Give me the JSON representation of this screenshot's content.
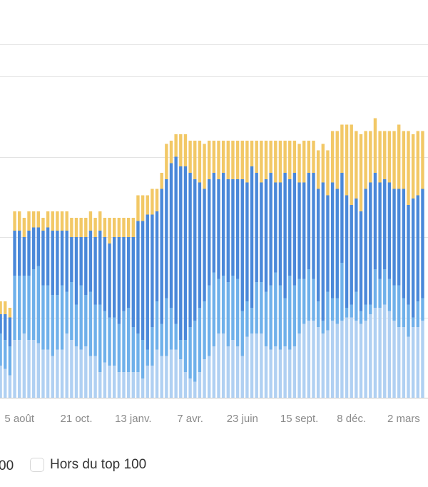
{
  "chart_data": {
    "type": "bar",
    "stacked": true,
    "ylim": [
      0,
      100
    ],
    "gridlines": [
      25,
      50,
      75,
      100
    ],
    "grid": true,
    "x_ticks": [
      {
        "label": "5 août",
        "at_bar": 4
      },
      {
        "label": "21 oct.",
        "at_bar": 16
      },
      {
        "label": "13 janv.",
        "at_bar": 28
      },
      {
        "label": "7 avr.",
        "at_bar": 40
      },
      {
        "label": "23 juin",
        "at_bar": 51
      },
      {
        "label": "15 sept.",
        "at_bar": 63
      },
      {
        "label": "8 déc.",
        "at_bar": 74
      },
      {
        "label": "2 mars",
        "at_bar": 85
      }
    ],
    "series": [
      {
        "key": "s1",
        "color": "#b0d0f2",
        "values": [
          10,
          9,
          7,
          18,
          18,
          20,
          18,
          18,
          17,
          15,
          15,
          13,
          15,
          15,
          20,
          18,
          16,
          15,
          16,
          13,
          13,
          8,
          11,
          10,
          10,
          8,
          8,
          8,
          8,
          8,
          6,
          10,
          10,
          15,
          13,
          13,
          15,
          15,
          12,
          8,
          6,
          5,
          8,
          12,
          13,
          16,
          20,
          20,
          16,
          18,
          16,
          13,
          19,
          20,
          20,
          20,
          16,
          15,
          16,
          15,
          16,
          15,
          16,
          20,
          23,
          24,
          24,
          22,
          20,
          21,
          24,
          23,
          24,
          25,
          25,
          24,
          23,
          24,
          26,
          28,
          28,
          29,
          27,
          24,
          22,
          22,
          19,
          22,
          22,
          24
        ]
      },
      {
        "key": "s2",
        "color": "#6fb0ea",
        "values": [
          10,
          9,
          9,
          20,
          20,
          18,
          20,
          22,
          24,
          20,
          20,
          19,
          17,
          20,
          13,
          18,
          13,
          20,
          16,
          20,
          16,
          21,
          16,
          15,
          15,
          15,
          19,
          20,
          14,
          12,
          12,
          5,
          12,
          15,
          10,
          18,
          13,
          8,
          6,
          10,
          16,
          19,
          20,
          18,
          22,
          23,
          17,
          18,
          20,
          20,
          21,
          14,
          11,
          8,
          16,
          16,
          17,
          20,
          23,
          20,
          15,
          23,
          19,
          17,
          14,
          16,
          13,
          8,
          4,
          12,
          7,
          8,
          18,
          3,
          4,
          9,
          4,
          5,
          3,
          12,
          9,
          11,
          10,
          11,
          13,
          9,
          10,
          3,
          8,
          7
        ]
      },
      {
        "key": "s3",
        "color": "#4a88d9",
        "values": [
          6,
          8,
          9,
          14,
          14,
          12,
          14,
          13,
          12,
          17,
          18,
          20,
          20,
          17,
          19,
          14,
          21,
          15,
          18,
          19,
          21,
          23,
          23,
          23,
          25,
          27,
          23,
          22,
          28,
          35,
          37,
          42,
          35,
          28,
          42,
          37,
          45,
          52,
          54,
          54,
          48,
          44,
          39,
          35,
          33,
          31,
          31,
          32,
          32,
          30,
          31,
          41,
          37,
          44,
          34,
          31,
          35,
          35,
          28,
          32,
          39,
          30,
          35,
          30,
          30,
          30,
          33,
          35,
          43,
          30,
          36,
          34,
          28,
          35,
          31,
          29,
          31,
          36,
          38,
          30,
          30,
          28,
          30,
          30,
          30,
          34,
          31,
          37,
          33,
          34
        ]
      },
      {
        "key": "s4",
        "name": "Hors du top 100",
        "color": "#f2c866",
        "values": [
          4,
          4,
          3,
          6,
          6,
          6,
          6,
          5,
          5,
          4,
          5,
          6,
          6,
          6,
          6,
          6,
          6,
          6,
          6,
          6,
          6,
          6,
          6,
          8,
          6,
          6,
          6,
          6,
          6,
          8,
          8,
          6,
          8,
          7,
          5,
          11,
          7,
          7,
          10,
          10,
          10,
          12,
          13,
          14,
          12,
          10,
          12,
          10,
          12,
          12,
          12,
          12,
          13,
          8,
          10,
          13,
          12,
          10,
          13,
          13,
          10,
          12,
          10,
          12,
          13,
          10,
          10,
          12,
          12,
          14,
          16,
          18,
          15,
          22,
          25,
          21,
          24,
          18,
          16,
          17,
          16,
          15,
          16,
          18,
          20,
          18,
          23,
          20,
          20,
          18
        ]
      }
    ],
    "legend": {
      "placement": "bottom",
      "entries": [
        {
          "label": "00"
        },
        {
          "label": "Hors du top 100",
          "checked": false
        }
      ]
    }
  }
}
